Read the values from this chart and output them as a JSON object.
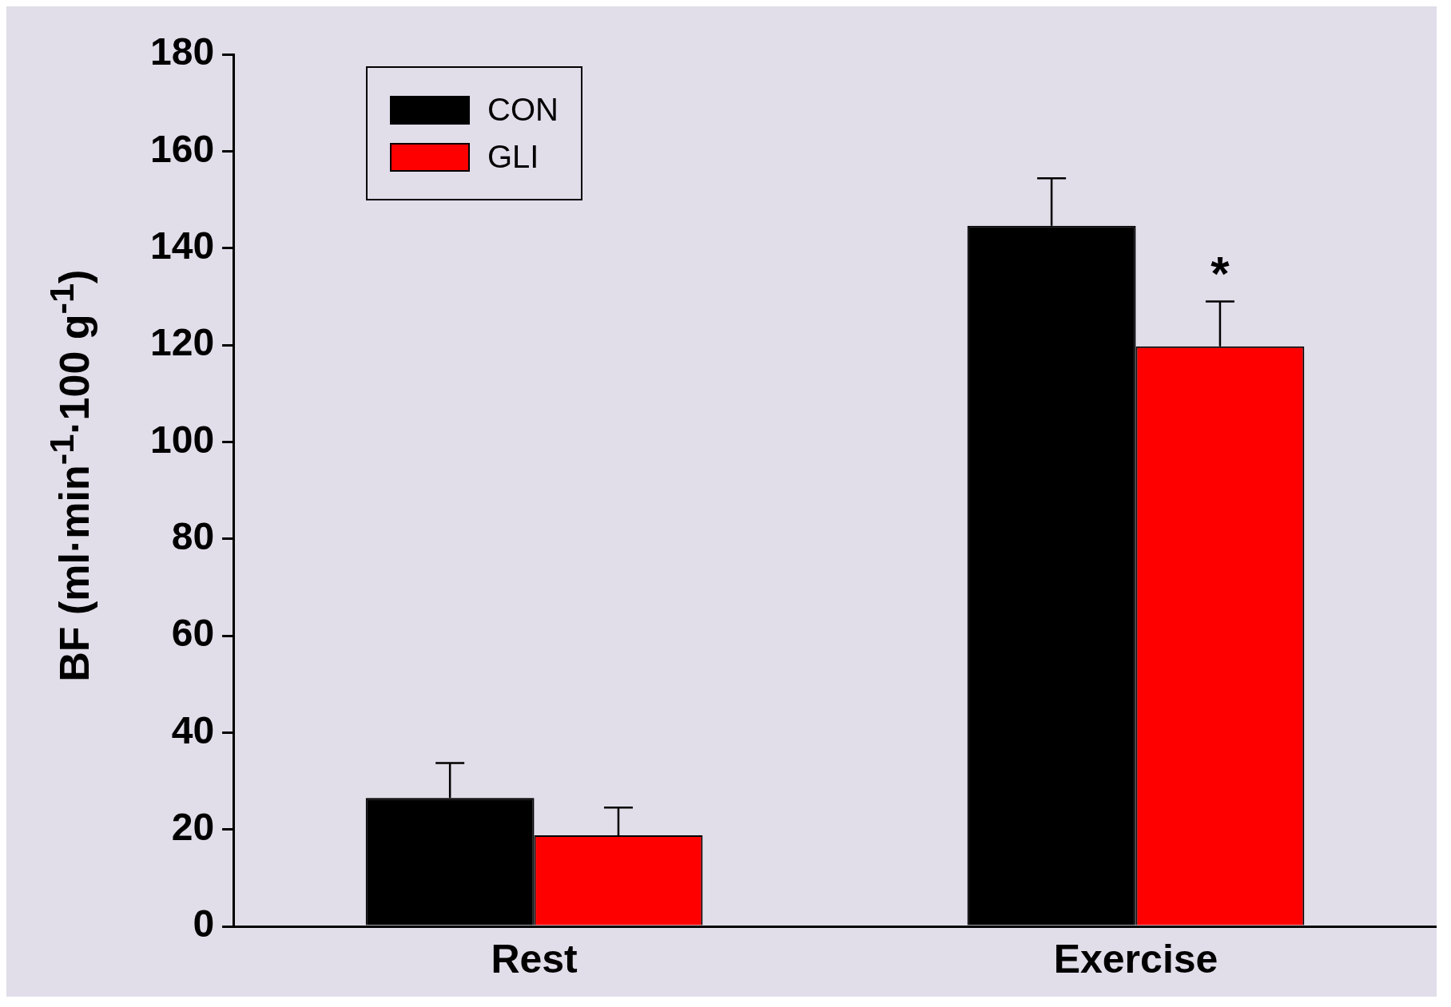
{
  "chart_data": {
    "type": "bar",
    "ylabel": "BF (ml·min$^{-1}$·100 g$^{-1}$)",
    "categories": [
      "Rest",
      "Exercise"
    ],
    "series": [
      {
        "name": "CON",
        "color": "#000000",
        "values": [
          26.5,
          144.6
        ],
        "errors": [
          7.2,
          9.8
        ]
      },
      {
        "name": "GLI",
        "color": "#ff0000",
        "values": [
          18.8,
          119.7
        ],
        "errors": [
          5.7,
          9.3
        ]
      }
    ],
    "ylim": [
      0,
      180
    ],
    "yticks": [
      0,
      20,
      40,
      60,
      80,
      100,
      120,
      140,
      160,
      180
    ],
    "grid": false,
    "legend": "top left",
    "annotations": [
      {
        "text": "*",
        "x": "Exercise",
        "y": 136
      }
    ]
  }
}
